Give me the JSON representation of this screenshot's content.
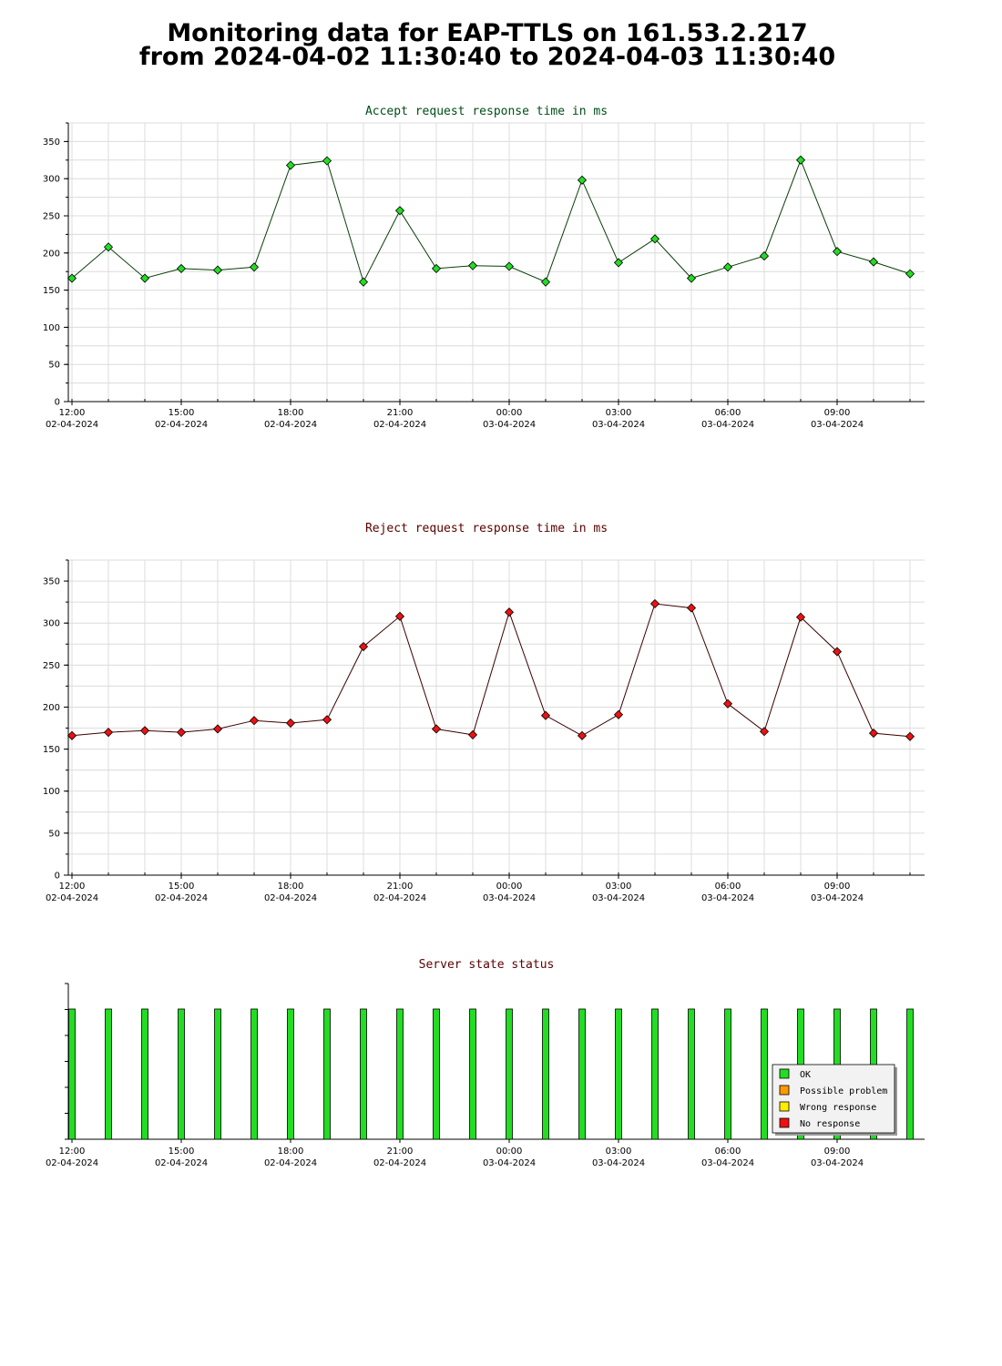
{
  "page": {
    "title_line1": "Monitoring data for EAP-TTLS on 161.53.2.217",
    "title_line2": "from 2024-04-02 11:30:40 to 2024-04-03 11:30:40"
  },
  "colors": {
    "accept_title": "#004d1a",
    "reject_title": "#5a0000",
    "status_title": "#5a0000",
    "accept_line": "#0a3d0a",
    "accept_marker": "#22dd22",
    "reject_line": "#3a0000",
    "reject_marker": "#ee1111",
    "ok": "#22dd22",
    "possible_problem": "#ff9900",
    "wrong_response": "#ffee00",
    "no_response": "#ee1111",
    "grid": "#dcdcdc"
  },
  "chart_data": [
    {
      "type": "line",
      "title": "Accept request response time in ms",
      "ylim": [
        0,
        375
      ],
      "yticks": [
        0,
        50,
        100,
        150,
        200,
        250,
        300,
        350
      ],
      "xlim": [
        -0.1,
        23.4
      ],
      "xtick_positions": [
        0,
        3,
        6,
        9,
        12,
        15,
        18,
        21
      ],
      "xtick_labels": [
        {
          "time": "12:00",
          "date": "02-04-2024"
        },
        {
          "time": "15:00",
          "date": "02-04-2024"
        },
        {
          "time": "18:00",
          "date": "02-04-2024"
        },
        {
          "time": "21:00",
          "date": "02-04-2024"
        },
        {
          "time": "00:00",
          "date": "03-04-2024"
        },
        {
          "time": "03:00",
          "date": "03-04-2024"
        },
        {
          "time": "06:00",
          "date": "03-04-2024"
        },
        {
          "time": "09:00",
          "date": "03-04-2024"
        }
      ],
      "grid": true,
      "x": [
        0,
        1,
        2,
        3,
        4,
        5,
        6,
        7,
        8,
        9,
        10,
        11,
        12,
        13,
        14,
        15,
        16,
        17,
        18,
        19,
        20,
        21,
        22,
        23
      ],
      "y": [
        166,
        208,
        166,
        179,
        177,
        181,
        318,
        324,
        161,
        257,
        179,
        183,
        182,
        161,
        298,
        187,
        219,
        166,
        181,
        196,
        325,
        202,
        188,
        172
      ]
    },
    {
      "type": "line",
      "title": "Reject request response time in ms",
      "ylim": [
        0,
        375
      ],
      "yticks": [
        0,
        50,
        100,
        150,
        200,
        250,
        300,
        350
      ],
      "xlim": [
        -0.1,
        23.4
      ],
      "xtick_positions": [
        0,
        3,
        6,
        9,
        12,
        15,
        18,
        21
      ],
      "xtick_labels": [
        {
          "time": "12:00",
          "date": "02-04-2024"
        },
        {
          "time": "15:00",
          "date": "02-04-2024"
        },
        {
          "time": "18:00",
          "date": "02-04-2024"
        },
        {
          "time": "21:00",
          "date": "02-04-2024"
        },
        {
          "time": "00:00",
          "date": "03-04-2024"
        },
        {
          "time": "03:00",
          "date": "03-04-2024"
        },
        {
          "time": "06:00",
          "date": "03-04-2024"
        },
        {
          "time": "09:00",
          "date": "03-04-2024"
        }
      ],
      "grid": true,
      "x": [
        0,
        1,
        2,
        3,
        4,
        5,
        6,
        7,
        8,
        9,
        10,
        11,
        12,
        13,
        14,
        15,
        16,
        17,
        18,
        19,
        20,
        21,
        22,
        23
      ],
      "y": [
        166,
        170,
        172,
        170,
        174,
        184,
        181,
        185,
        272,
        308,
        174,
        167,
        313,
        190,
        166,
        191,
        323,
        318,
        204,
        171,
        307,
        266,
        169,
        165
      ]
    },
    {
      "type": "bar",
      "title": "Server state status",
      "xlim": [
        -0.1,
        23.4
      ],
      "xtick_positions": [
        0,
        3,
        6,
        9,
        12,
        15,
        18,
        21
      ],
      "xtick_labels": [
        {
          "time": "12:00",
          "date": "02-04-2024"
        },
        {
          "time": "15:00",
          "date": "02-04-2024"
        },
        {
          "time": "18:00",
          "date": "02-04-2024"
        },
        {
          "time": "21:00",
          "date": "02-04-2024"
        },
        {
          "time": "00:00",
          "date": "03-04-2024"
        },
        {
          "time": "03:00",
          "date": "03-04-2024"
        },
        {
          "time": "06:00",
          "date": "03-04-2024"
        },
        {
          "time": "09:00",
          "date": "03-04-2024"
        }
      ],
      "x": [
        0,
        1,
        2,
        3,
        4,
        5,
        6,
        7,
        8,
        9,
        10,
        11,
        12,
        13,
        14,
        15,
        16,
        17,
        18,
        19,
        20,
        21,
        22,
        23
      ],
      "states": [
        "OK",
        "OK",
        "OK",
        "OK",
        "OK",
        "OK",
        "OK",
        "OK",
        "OK",
        "OK",
        "OK",
        "OK",
        "OK",
        "OK",
        "OK",
        "OK",
        "OK",
        "OK",
        "OK",
        "OK",
        "OK",
        "OK",
        "OK",
        "OK"
      ],
      "legend": [
        "OK",
        "Possible problem",
        "Wrong response",
        "No response"
      ],
      "legend_position": "bottom-right"
    }
  ]
}
